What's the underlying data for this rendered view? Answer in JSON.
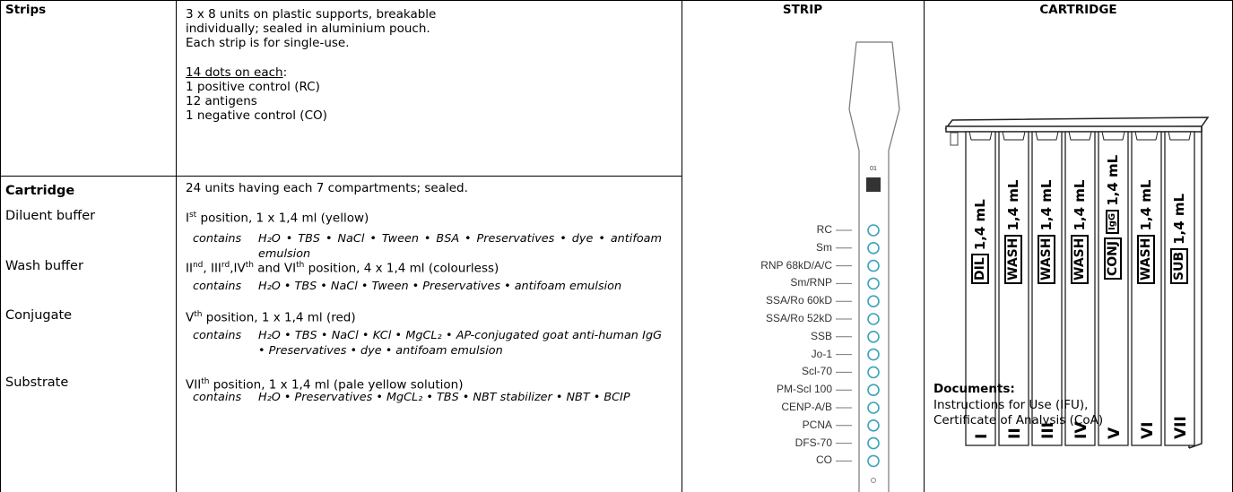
{
  "table": {
    "strips": {
      "label": "Strips",
      "lines": [
        "3 x 8 units on plastic supports, breakable",
        "individually; sealed in aluminium pouch.",
        "Each strip is for single-use."
      ],
      "dots_heading": "14 dots on each",
      "dots_colon": ":",
      "dots": [
        "1 positive control (RC)",
        "12 antigens",
        "1 negative control (CO)"
      ]
    },
    "cartridge": {
      "label": "Cartridge",
      "intro": "24 units having each 7 compartments; sealed.",
      "components": [
        {
          "name": "Diluent buffer",
          "position": [
            "I",
            "st",
            " position, 1 x 1,4 ml (yellow)"
          ],
          "contains_label": "contains",
          "contains": "H₂O • TBS • NaCl • Tween • BSA • Preservatives • dye • antifoam emulsion"
        },
        {
          "name": "Wash buffer",
          "position": [
            "II",
            "nd",
            ", III",
            "rd",
            ",IV",
            "th",
            " and VI",
            "th",
            " position, 4 x 1,4 ml (colourless)"
          ],
          "contains_label": "contains",
          "contains": "H₂O • TBS • NaCl • Tween • Preservatives • antifoam emulsion"
        },
        {
          "name": "Conjugate",
          "position": [
            "V",
            "th",
            " position, 1 x 1,4 ml (red)"
          ],
          "contains_label": "contains",
          "contains": "H₂O • TBS • NaCl • KCl • MgCL₂ • AP-conjugated goat anti-human IgG • Preservatives • dye • antifoam emulsion"
        },
        {
          "name": "Substrate",
          "position": [
            "VII",
            "th",
            " position, 1 x 1,4 ml (pale yellow solution)"
          ],
          "contains_label": "contains",
          "contains": "H₂O • Preservatives • MgCL₂ • TBS • NBT stabilizer • NBT • BCIP"
        }
      ]
    }
  },
  "strip": {
    "title": "STRIP",
    "number": "01",
    "labels": [
      "RC",
      "Sm",
      "RNP 68kD/A/C",
      "Sm/RNP",
      "SSA/Ro 60kD",
      "SSA/Ro 52kD",
      "SSB",
      "Jo-1",
      "Scl-70",
      "PM-Scl 100",
      "CENP-A/B",
      "PCNA",
      "DFS-70",
      "CO"
    ]
  },
  "cartridge_figure": {
    "title": "CARTRIDGE",
    "compartments": [
      {
        "label": "DIL",
        "volume": "1,4 mL",
        "numeral": "I"
      },
      {
        "label": "WASH",
        "volume": "1,4 mL",
        "numeral": "II"
      },
      {
        "label": "WASH",
        "volume": "1,4 mL",
        "numeral": "III"
      },
      {
        "label": "WASH",
        "volume": "1,4 mL",
        "numeral": "IV"
      },
      {
        "label": "CONJ",
        "sublabel": "IgG",
        "volume": "1,4 mL",
        "numeral": "V"
      },
      {
        "label": "WASH",
        "volume": "1,4 mL",
        "numeral": "VI"
      },
      {
        "label": "SUB",
        "volume": "1,4 mL",
        "numeral": "VII"
      }
    ]
  },
  "documents": {
    "title": "Documents:",
    "lines": [
      "Instructions for Use (IFU),",
      "Certificate of Analysis (CoA)"
    ]
  }
}
